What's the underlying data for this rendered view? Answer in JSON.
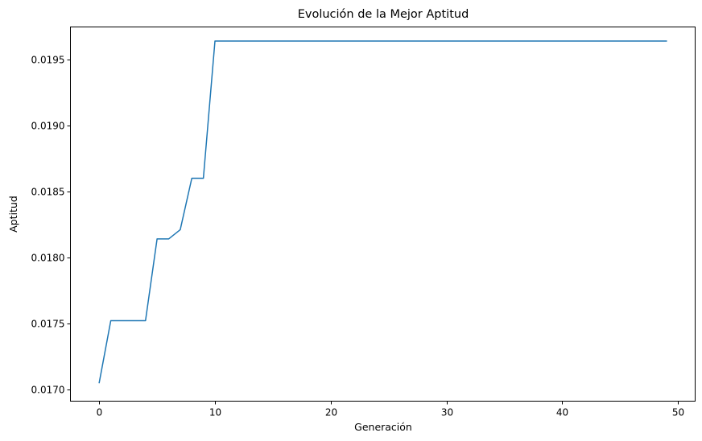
{
  "chart_data": {
    "type": "line",
    "title": "Evolución de la Mejor Aptitud",
    "xlabel": "Generación",
    "ylabel": "Aptitud",
    "xlim": [
      -2.45,
      51.45
    ],
    "ylim": [
      0.016913,
      0.019744
    ],
    "xticks": [
      0,
      10,
      20,
      30,
      40,
      50
    ],
    "xtick_labels": [
      "0",
      "10",
      "20",
      "30",
      "40",
      "50"
    ],
    "yticks": [
      0.017,
      0.0175,
      0.018,
      0.0185,
      0.019,
      0.0195
    ],
    "ytick_labels": [
      "0.0170",
      "0.0175",
      "0.0180",
      "0.0185",
      "0.0190",
      "0.0195"
    ],
    "grid": false,
    "legend": "none",
    "series": [
      {
        "color": "#1f77b4",
        "x": [
          0,
          1,
          2,
          3,
          4,
          5,
          6,
          7,
          8,
          9,
          10,
          11,
          12,
          13,
          14,
          15,
          16,
          17,
          18,
          19,
          20,
          21,
          22,
          23,
          24,
          25,
          26,
          27,
          28,
          29,
          30,
          31,
          32,
          33,
          34,
          35,
          36,
          37,
          38,
          39,
          40,
          41,
          42,
          43,
          44,
          45,
          46,
          47,
          48,
          49
        ],
        "y": [
          0.01705,
          0.01752,
          0.01752,
          0.01752,
          0.01752,
          0.01814,
          0.01814,
          0.01821,
          0.0186,
          0.0186,
          0.01964,
          0.01964,
          0.01964,
          0.01964,
          0.01964,
          0.01964,
          0.01964,
          0.01964,
          0.01964,
          0.01964,
          0.01964,
          0.01964,
          0.01964,
          0.01964,
          0.01964,
          0.01964,
          0.01964,
          0.01964,
          0.01964,
          0.01964,
          0.01964,
          0.01964,
          0.01964,
          0.01964,
          0.01964,
          0.01964,
          0.01964,
          0.01964,
          0.01964,
          0.01964,
          0.01964,
          0.01964,
          0.01964,
          0.01964,
          0.01964,
          0.01964,
          0.01964,
          0.01964,
          0.01964,
          0.01964
        ]
      }
    ]
  }
}
